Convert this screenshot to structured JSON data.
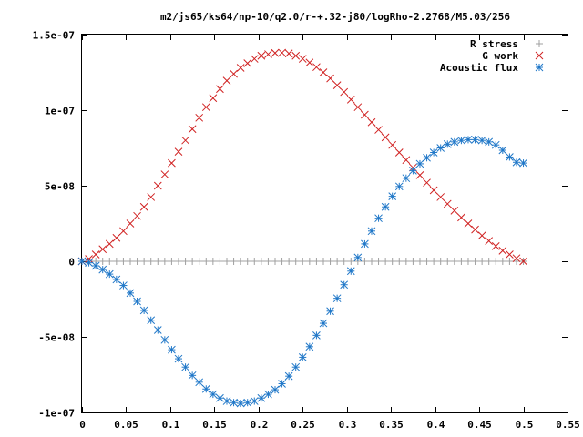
{
  "chart_data": {
    "type": "scatter",
    "title": "m2/js65/ks64/np-10/q2.0/r-+.32-j80/logRho-2.2768/M5.03/256",
    "xlabel": "",
    "ylabel": "",
    "xlim": [
      0,
      0.55
    ],
    "ylim": [
      -1e-07,
      1.5e-07
    ],
    "grid": false,
    "legend_position": "top-right",
    "x_ticks": [
      "0",
      "0.05",
      "0.1",
      "0.15",
      "0.2",
      "0.25",
      "0.3",
      "0.35",
      "0.4",
      "0.45",
      "0.5",
      "0.55"
    ],
    "y_ticks": [
      "-1e-07",
      "-5e-08",
      "0",
      "5e-08",
      "1e-07",
      "1.5e-07"
    ],
    "series": [
      {
        "name": "R stress",
        "marker": "plus",
        "color": "#a0a0a0",
        "x": [
          0.0,
          0.00781,
          0.01563,
          0.02344,
          0.03125,
          0.03906,
          0.04688,
          0.05469,
          0.0625,
          0.07031,
          0.07813,
          0.08594,
          0.09375,
          0.10156,
          0.10938,
          0.11719,
          0.125,
          0.13281,
          0.14063,
          0.14844,
          0.15625,
          0.16406,
          0.17188,
          0.17969,
          0.1875,
          0.19531,
          0.20313,
          0.21094,
          0.21875,
          0.22656,
          0.23438,
          0.24219,
          0.25,
          0.25781,
          0.26563,
          0.27344,
          0.28125,
          0.28906,
          0.29688,
          0.30469,
          0.3125,
          0.32031,
          0.32813,
          0.33594,
          0.34375,
          0.35156,
          0.35938,
          0.36719,
          0.375,
          0.38281,
          0.39063,
          0.39844,
          0.40625,
          0.41406,
          0.42188,
          0.42969,
          0.4375,
          0.44531,
          0.45313,
          0.46094,
          0.46875,
          0.47656,
          0.48438,
          0.49219,
          0.5
        ],
        "y": [
          0,
          0,
          0,
          0,
          0,
          0,
          0,
          0,
          0,
          0,
          0,
          0,
          0,
          0,
          0,
          0,
          0,
          0,
          0,
          0,
          0,
          0,
          0,
          0,
          0,
          0,
          0,
          0,
          0,
          0,
          0,
          0,
          0,
          0,
          0,
          0,
          0,
          0,
          0,
          0,
          0,
          0,
          0,
          0,
          0,
          0,
          0,
          0,
          0,
          0,
          0,
          0,
          0,
          0,
          0,
          0,
          0,
          0,
          0,
          0,
          0,
          0,
          0,
          0,
          0
        ]
      },
      {
        "name": "G work",
        "marker": "cross",
        "color": "#d02020",
        "x": [
          0.0,
          0.00781,
          0.01563,
          0.02344,
          0.03125,
          0.03906,
          0.04688,
          0.05469,
          0.0625,
          0.07031,
          0.07813,
          0.08594,
          0.09375,
          0.10156,
          0.10938,
          0.11719,
          0.125,
          0.13281,
          0.14063,
          0.14844,
          0.15625,
          0.16406,
          0.17188,
          0.17969,
          0.1875,
          0.19531,
          0.20313,
          0.21094,
          0.21875,
          0.22656,
          0.23438,
          0.24219,
          0.25,
          0.25781,
          0.26563,
          0.27344,
          0.28125,
          0.28906,
          0.29688,
          0.30469,
          0.3125,
          0.32031,
          0.32813,
          0.33594,
          0.34375,
          0.35156,
          0.35938,
          0.36719,
          0.375,
          0.38281,
          0.39063,
          0.39844,
          0.40625,
          0.41406,
          0.42188,
          0.42969,
          0.4375,
          0.44531,
          0.45313,
          0.46094,
          0.46875,
          0.47656,
          0.48438,
          0.49219,
          0.5
        ],
        "y": [
          0,
          1.5e-09,
          4.5e-09,
          8e-09,
          1.15e-08,
          1.55e-08,
          2e-08,
          2.5e-08,
          3e-08,
          3.6e-08,
          4.25e-08,
          5e-08,
          5.75e-08,
          6.5e-08,
          7.25e-08,
          8e-08,
          8.75e-08,
          9.5e-08,
          1.02e-07,
          1.08e-07,
          1.14e-07,
          1.195e-07,
          1.24e-07,
          1.28e-07,
          1.31e-07,
          1.34e-07,
          1.36e-07,
          1.37e-07,
          1.378e-07,
          1.38e-07,
          1.375e-07,
          1.36e-07,
          1.34e-07,
          1.315e-07,
          1.285e-07,
          1.25e-07,
          1.21e-07,
          1.165e-07,
          1.12e-07,
          1.07e-07,
          1.02e-07,
          9.7e-08,
          9.2e-08,
          8.7e-08,
          8.2e-08,
          7.7e-08,
          7.2e-08,
          6.7e-08,
          6.2e-08,
          5.7e-08,
          5.2e-08,
          4.7e-08,
          4.25e-08,
          3.8e-08,
          3.35e-08,
          2.9e-08,
          2.5e-08,
          2.1e-08,
          1.7e-08,
          1.35e-08,
          1e-08,
          7e-09,
          4.5e-09,
          2e-09,
          0
        ]
      },
      {
        "name": "Acoustic flux",
        "marker": "star",
        "color": "#1f77c8",
        "x": [
          0.0,
          0.00781,
          0.01563,
          0.02344,
          0.03125,
          0.03906,
          0.04688,
          0.05469,
          0.0625,
          0.07031,
          0.07813,
          0.08594,
          0.09375,
          0.10156,
          0.10938,
          0.11719,
          0.125,
          0.13281,
          0.14063,
          0.14844,
          0.15625,
          0.16406,
          0.17188,
          0.17969,
          0.1875,
          0.19531,
          0.20313,
          0.21094,
          0.21875,
          0.22656,
          0.23438,
          0.24219,
          0.25,
          0.25781,
          0.26563,
          0.27344,
          0.28125,
          0.28906,
          0.29688,
          0.30469,
          0.3125,
          0.32031,
          0.32813,
          0.33594,
          0.34375,
          0.35156,
          0.35938,
          0.36719,
          0.375,
          0.38281,
          0.39063,
          0.39844,
          0.40625,
          0.41406,
          0.42188,
          0.42969,
          0.4375,
          0.44531,
          0.45313,
          0.46094,
          0.46875,
          0.47656,
          0.48438,
          0.49219,
          0.5
        ],
        "y": [
          0,
          -1e-09,
          -3e-09,
          -5.5e-09,
          -8.5e-09,
          -1.2e-08,
          -1.6e-08,
          -2.1e-08,
          -2.65e-08,
          -3.25e-08,
          -3.9e-08,
          -4.55e-08,
          -5.2e-08,
          -5.85e-08,
          -6.45e-08,
          -7e-08,
          -7.55e-08,
          -8e-08,
          -8.45e-08,
          -8.8e-08,
          -9.05e-08,
          -9.25e-08,
          -9.35e-08,
          -9.4e-08,
          -9.35e-08,
          -9.25e-08,
          -9.05e-08,
          -8.8e-08,
          -8.5e-08,
          -8.1e-08,
          -7.6e-08,
          -7e-08,
          -6.35e-08,
          -5.65e-08,
          -4.9e-08,
          -4.1e-08,
          -3.3e-08,
          -2.45e-08,
          -1.55e-08,
          -6.5e-09,
          2.5e-09,
          1.15e-08,
          2e-08,
          2.85e-08,
          3.6e-08,
          4.3e-08,
          4.95e-08,
          5.5e-08,
          6e-08,
          6.45e-08,
          6.85e-08,
          7.2e-08,
          7.5e-08,
          7.75e-08,
          7.9e-08,
          8e-08,
          8.05e-08,
          8.05e-08,
          8e-08,
          7.9e-08,
          7.7e-08,
          7.35e-08,
          6.9e-08,
          6.55e-08,
          6.5e-08
        ]
      }
    ]
  }
}
